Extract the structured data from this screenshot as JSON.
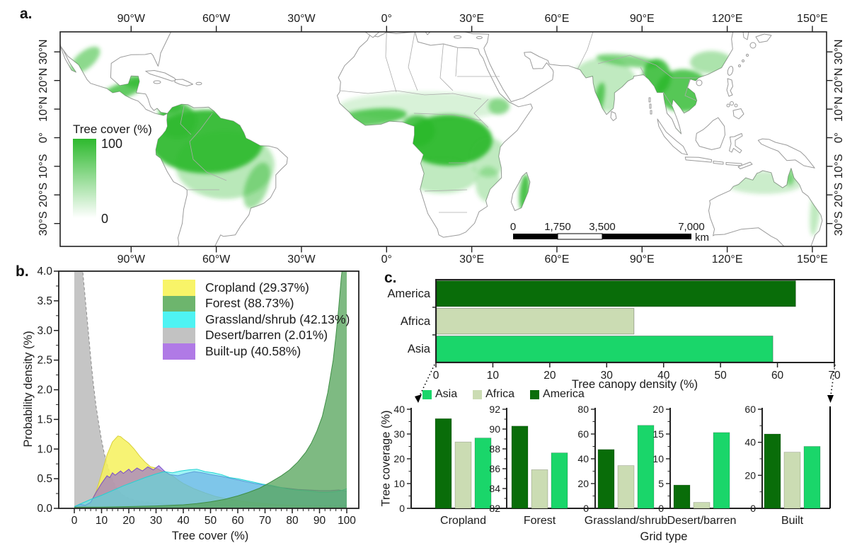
{
  "panels": {
    "a": "a.",
    "b": "b.",
    "c": "c."
  },
  "map": {
    "lon_ticks": [
      "90°W",
      "60°W",
      "30°W",
      "0°",
      "30°E",
      "60°E",
      "90°E",
      "120°E",
      "150°E"
    ],
    "lat_ticks": [
      "30°N",
      "20°N",
      "10°N",
      "0°",
      "10°S",
      "20°S",
      "30°S"
    ],
    "legend_title": "Tree cover (%)",
    "legend_max": "100",
    "legend_min": "0",
    "scalebar_labels": [
      "0",
      "1,750",
      "3,500",
      "7,000"
    ],
    "scalebar_unit": "km",
    "colors": {
      "tree_high": "#2db92d",
      "tree_low": "#ffffff",
      "coast": "#9a9a9a"
    }
  },
  "chart_data": [
    {
      "id": "tree-cover-distribution",
      "type": "area",
      "xlabel": "Tree cover (%)",
      "ylabel": "Probability density (%)",
      "xlim": [
        0,
        100
      ],
      "ylim": [
        0,
        4
      ],
      "x_major_ticks": [
        0,
        10,
        20,
        30,
        40,
        50,
        60,
        70,
        80,
        90,
        100
      ],
      "y_major_ticks": [
        0,
        0.5,
        1,
        1.5,
        2,
        2.5,
        3,
        3.5,
        4
      ],
      "x_minor_step": 2,
      "y_minor_step": 0.25,
      "grid": false,
      "legend_position": "top-center-inside",
      "legend": [
        {
          "label": "Cropland (29.37%)",
          "color": "#f8f468"
        },
        {
          "label": "Forest (88.73%)",
          "color": "#6db56d"
        },
        {
          "label": "Grassland/shrub (42.13%)",
          "color": "#4ef3f3"
        },
        {
          "label": "Desert/barren (2.01%)",
          "color": "#c2c2c2"
        },
        {
          "label": "Built-up (40.58%)",
          "color": "#b07ae6"
        }
      ],
      "series": [
        {
          "name": "Desert/barren (2.01%)",
          "fill": "#bdbdbd",
          "stroke": "#8a8a8a",
          "dash": "4 3",
          "opacity": 0.88,
          "points": [
            [
              0,
              4.3
            ],
            [
              2,
              4.3
            ],
            [
              3,
              4.05
            ],
            [
              4,
              3.55
            ],
            [
              5,
              3.05
            ],
            [
              6,
              2.55
            ],
            [
              7,
              2.1
            ],
            [
              8,
              1.72
            ],
            [
              9,
              1.42
            ],
            [
              10,
              1.15
            ],
            [
              11,
              0.93
            ],
            [
              12,
              0.75
            ],
            [
              13,
              0.6
            ],
            [
              14,
              0.48
            ],
            [
              15,
              0.38
            ],
            [
              16,
              0.31
            ],
            [
              17,
              0.26
            ],
            [
              18,
              0.22
            ],
            [
              20,
              0.17
            ],
            [
              23,
              0.13
            ],
            [
              26,
              0.11
            ],
            [
              30,
              0.09
            ],
            [
              35,
              0.08
            ],
            [
              40,
              0.07
            ],
            [
              50,
              0.06
            ],
            [
              60,
              0.055
            ],
            [
              70,
              0.05
            ],
            [
              80,
              0.045
            ],
            [
              90,
              0.04
            ],
            [
              100,
              0.04
            ]
          ]
        },
        {
          "name": "Cropland (29.37%)",
          "fill": "#f6f161",
          "stroke": "#d9d03b",
          "dash": "",
          "opacity": 0.88,
          "points": [
            [
              0,
              0.01
            ],
            [
              4,
              0.04
            ],
            [
              6,
              0.1
            ],
            [
              8,
              0.28
            ],
            [
              10,
              0.58
            ],
            [
              12,
              0.9
            ],
            [
              14,
              1.12
            ],
            [
              16,
              1.22
            ],
            [
              17,
              1.21
            ],
            [
              18,
              1.17
            ],
            [
              20,
              1.1
            ],
            [
              22,
              1.0
            ],
            [
              24,
              0.88
            ],
            [
              26,
              0.78
            ],
            [
              28,
              0.7
            ],
            [
              30,
              0.68
            ],
            [
              32,
              0.63
            ],
            [
              34,
              0.6
            ],
            [
              36,
              0.55
            ],
            [
              38,
              0.48
            ],
            [
              40,
              0.42
            ],
            [
              44,
              0.33
            ],
            [
              48,
              0.26
            ],
            [
              52,
              0.2
            ],
            [
              56,
              0.16
            ],
            [
              60,
              0.13
            ],
            [
              65,
              0.1
            ],
            [
              70,
              0.08
            ],
            [
              75,
              0.06
            ],
            [
              80,
              0.05
            ],
            [
              90,
              0.03
            ],
            [
              100,
              0.02
            ]
          ]
        },
        {
          "name": "Built-up (40.58%)",
          "fill": "#8f62d8",
          "stroke": "#7a4fc7",
          "dash": "",
          "opacity": 0.6,
          "points": [
            [
              0,
              0.02
            ],
            [
              2,
              0.07
            ],
            [
              4,
              0.05
            ],
            [
              6,
              0.1
            ],
            [
              8,
              0.27
            ],
            [
              10,
              0.42
            ],
            [
              12,
              0.55
            ],
            [
              13,
              0.52
            ],
            [
              14,
              0.6
            ],
            [
              15,
              0.56
            ],
            [
              17,
              0.63
            ],
            [
              18,
              0.59
            ],
            [
              20,
              0.66
            ],
            [
              21,
              0.61
            ],
            [
              23,
              0.68
            ],
            [
              25,
              0.63
            ],
            [
              27,
              0.7
            ],
            [
              29,
              0.65
            ],
            [
              31,
              0.72
            ],
            [
              33,
              0.63
            ],
            [
              35,
              0.57
            ],
            [
              38,
              0.55
            ],
            [
              41,
              0.59
            ],
            [
              44,
              0.62
            ],
            [
              47,
              0.6
            ],
            [
              50,
              0.57
            ],
            [
              54,
              0.54
            ],
            [
              58,
              0.5
            ],
            [
              62,
              0.46
            ],
            [
              66,
              0.42
            ],
            [
              70,
              0.39
            ],
            [
              74,
              0.36
            ],
            [
              78,
              0.34
            ],
            [
              82,
              0.32
            ],
            [
              86,
              0.31
            ],
            [
              90,
              0.3
            ],
            [
              94,
              0.3
            ],
            [
              97,
              0.31
            ],
            [
              100,
              0.29
            ]
          ]
        },
        {
          "name": "Grassland/shrub (42.13%)",
          "fill": "#3fecec",
          "stroke": "#21d3d3",
          "dash": "",
          "opacity": 0.5,
          "points": [
            [
              0,
              0.03
            ],
            [
              3,
              0.09
            ],
            [
              6,
              0.15
            ],
            [
              10,
              0.22
            ],
            [
              14,
              0.3
            ],
            [
              18,
              0.38
            ],
            [
              22,
              0.45
            ],
            [
              26,
              0.52
            ],
            [
              30,
              0.58
            ],
            [
              33,
              0.62
            ],
            [
              36,
              0.6
            ],
            [
              39,
              0.63
            ],
            [
              42,
              0.65
            ],
            [
              45,
              0.66
            ],
            [
              48,
              0.62
            ],
            [
              51,
              0.6
            ],
            [
              54,
              0.57
            ],
            [
              57,
              0.52
            ],
            [
              60,
              0.5
            ],
            [
              63,
              0.47
            ],
            [
              66,
              0.44
            ],
            [
              69,
              0.41
            ],
            [
              72,
              0.39
            ],
            [
              75,
              0.36
            ],
            [
              78,
              0.33
            ],
            [
              81,
              0.31
            ],
            [
              84,
              0.3
            ],
            [
              87,
              0.29
            ],
            [
              90,
              0.27
            ],
            [
              93,
              0.27
            ],
            [
              96,
              0.28
            ],
            [
              98,
              0.3
            ],
            [
              100,
              0.33
            ]
          ]
        },
        {
          "name": "Forest (88.73%)",
          "fill": "#5aa75f",
          "stroke": "#3f8f46",
          "dash": "",
          "opacity": 0.78,
          "points": [
            [
              0,
              0.02
            ],
            [
              10,
              0.02
            ],
            [
              20,
              0.03
            ],
            [
              30,
              0.04
            ],
            [
              40,
              0.06
            ],
            [
              45,
              0.08
            ],
            [
              50,
              0.11
            ],
            [
              55,
              0.15
            ],
            [
              60,
              0.21
            ],
            [
              64,
              0.27
            ],
            [
              68,
              0.34
            ],
            [
              72,
              0.44
            ],
            [
              76,
              0.55
            ],
            [
              79,
              0.65
            ],
            [
              82,
              0.78
            ],
            [
              85,
              0.95
            ],
            [
              87,
              1.1
            ],
            [
              89,
              1.3
            ],
            [
              91,
              1.55
            ],
            [
              93,
              1.95
            ],
            [
              95,
              2.5
            ],
            [
              96,
              2.9
            ],
            [
              97,
              3.35
            ],
            [
              98,
              3.9
            ],
            [
              99,
              4.3
            ],
            [
              100,
              4.3
            ]
          ]
        }
      ]
    },
    {
      "id": "tree-canopy-density",
      "type": "bar-horizontal",
      "categories": [
        "America",
        "Africa",
        "Asia"
      ],
      "values": [
        63.2,
        34.8,
        59.2
      ],
      "colors": [
        "#096d09",
        "#cbdcb3",
        "#1ad66a"
      ],
      "xlabel": "Tree canopy density (%)",
      "xlim": [
        0,
        70
      ],
      "x_ticks": [
        0,
        10,
        20,
        30,
        40,
        50,
        60,
        70
      ]
    },
    {
      "id": "tree-coverage-by-grid-type",
      "type": "grouped-bar",
      "ylabel": "Tree coverage (%)",
      "xlabel": "Grid type",
      "bar_order": [
        "America",
        "Africa",
        "Asia"
      ],
      "legend": [
        {
          "name": "Asia",
          "color": "#1ad66a"
        },
        {
          "name": "Africa",
          "color": "#cbdcb3"
        },
        {
          "name": "America",
          "color": "#096d09"
        }
      ],
      "groups": [
        {
          "category": "Cropland",
          "ylim": [
            0,
            40
          ],
          "yticks": [
            0,
            10,
            20,
            30,
            40
          ],
          "values": {
            "America": 36.2,
            "Africa": 26.8,
            "Asia": 28.4
          }
        },
        {
          "category": "Forest",
          "ylim": [
            82,
            92
          ],
          "yticks": [
            82,
            84,
            86,
            88,
            90,
            92
          ],
          "values": {
            "America": 90.3,
            "Africa": 85.9,
            "Asia": 87.6
          }
        },
        {
          "category": "Grassland/shrub",
          "ylim": [
            0,
            80
          ],
          "yticks": [
            0,
            20,
            40,
            60,
            80
          ],
          "values": {
            "America": 47.5,
            "Africa": 34.5,
            "Asia": 67
          }
        },
        {
          "category": "Desert/barren",
          "ylim": [
            0,
            20
          ],
          "yticks": [
            0,
            5,
            10,
            15,
            20
          ],
          "values": {
            "America": 4.7,
            "Africa": 1.2,
            "Asia": 15.3
          }
        },
        {
          "category": "Built",
          "ylim": [
            0,
            60
          ],
          "yticks": [
            0,
            20,
            40,
            60
          ],
          "values": {
            "America": 45,
            "Africa": 34,
            "Asia": 37.5
          }
        }
      ]
    }
  ]
}
